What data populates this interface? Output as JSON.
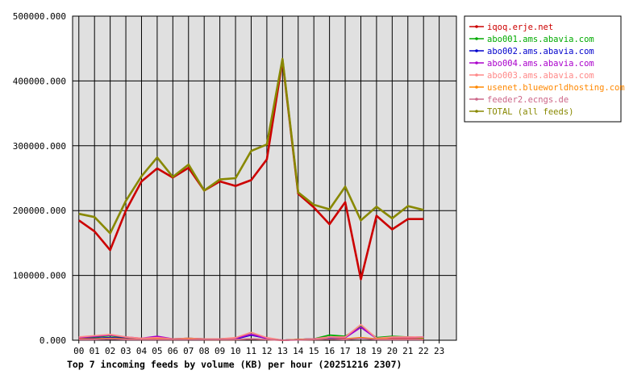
{
  "chart_data": {
    "type": "line",
    "title": "Top 7 incoming feeds by volume (KB) per hour (20251216 2307)",
    "xlabel": "",
    "ylabel": "",
    "ylim": [
      0,
      500000
    ],
    "y_ticks": [
      "0.000",
      "100000.000",
      "200000.000",
      "300000.000",
      "400000.000",
      "500000.000"
    ],
    "x": [
      "00",
      "01",
      "02",
      "03",
      "04",
      "05",
      "06",
      "07",
      "08",
      "09",
      "10",
      "11",
      "12",
      "13",
      "14",
      "15",
      "16",
      "17",
      "18",
      "19",
      "20",
      "21",
      "22",
      "23"
    ],
    "grid": true,
    "legend_position": "right",
    "plot_background": "#e0e0e0",
    "series": [
      {
        "name": "iqoq.erje.net",
        "color": "#cc0000",
        "values": [
          185000,
          168000,
          139000,
          200000,
          245000,
          265000,
          251000,
          266000,
          231000,
          245000,
          238000,
          247000,
          279000,
          432000,
          226000,
          205000,
          179000,
          213000,
          94000,
          192000,
          171000,
          187000,
          187000,
          null
        ]
      },
      {
        "name": "abo001.ams.abavia.com",
        "color": "#00aa00",
        "values": [
          3000,
          5000,
          7000,
          4000,
          3000,
          3000,
          2000,
          3000,
          2000,
          2000,
          3000,
          12000,
          3000,
          0,
          1000,
          2000,
          8000,
          6000,
          21000,
          4000,
          6000,
          5000,
          4000,
          null
        ]
      },
      {
        "name": "abo002.ams.abavia.com",
        "color": "#0000cc",
        "values": [
          2000,
          3000,
          4000,
          3000,
          2000,
          3000,
          2000,
          2000,
          2000,
          2000,
          2000,
          8000,
          3000,
          0,
          1000,
          2000,
          4000,
          4000,
          20000,
          3000,
          4000,
          4000,
          5000,
          null
        ]
      },
      {
        "name": "abo004.ams.abavia.com",
        "color": "#aa00cc",
        "values": [
          4000,
          6000,
          8000,
          5000,
          3000,
          6000,
          2000,
          3000,
          2000,
          2000,
          3000,
          9000,
          3000,
          0,
          1000,
          2000,
          5000,
          4000,
          20000,
          3000,
          4000,
          4000,
          5000,
          null
        ]
      },
      {
        "name": "abo003.ams.abavia.com",
        "color": "#ff8888",
        "values": [
          5000,
          7000,
          9000,
          5000,
          3000,
          4000,
          2000,
          3000,
          2000,
          2000,
          4000,
          12000,
          4000,
          0,
          1000,
          2000,
          5000,
          5000,
          24000,
          3000,
          5000,
          5000,
          5000,
          null
        ]
      },
      {
        "name": "usenet.blueworldhosting.com",
        "color": "#ff8800",
        "values": [
          2000,
          2000,
          3000,
          2000,
          1000,
          2000,
          1000,
          2000,
          1000,
          1000,
          1000,
          2000,
          1000,
          0,
          1000,
          1000,
          2000,
          2000,
          4000,
          2000,
          2000,
          2000,
          2000,
          null
        ]
      },
      {
        "name": "feeder2.ecngs.de",
        "color": "#cc6688",
        "values": [
          1000,
          1000,
          2000,
          1000,
          1000,
          1000,
          1000,
          1000,
          1000,
          1000,
          1000,
          2000,
          1000,
          0,
          500,
          1000,
          2000,
          1000,
          3000,
          1000,
          1000,
          1000,
          1000,
          null
        ]
      },
      {
        "name": "TOTAL (all feeds)",
        "color": "#888800",
        "values": [
          195000,
          190000,
          165000,
          215000,
          253000,
          282000,
          252000,
          271000,
          231000,
          248000,
          250000,
          292000,
          302000,
          434000,
          228000,
          209000,
          202000,
          237000,
          185000,
          206000,
          188000,
          207000,
          201000,
          null
        ]
      }
    ]
  }
}
